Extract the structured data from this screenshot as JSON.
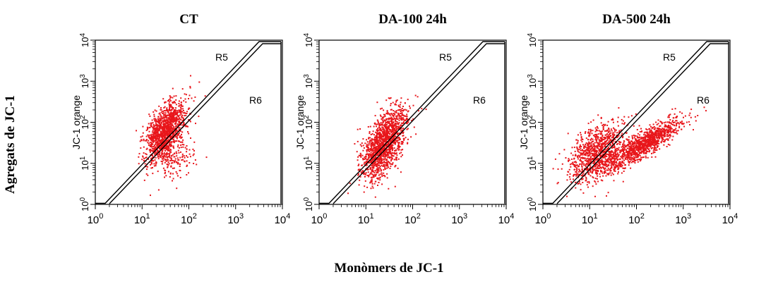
{
  "figure": {
    "ylabel": "Agregats de JC-1",
    "xlabel": "Monòmers de JC-1"
  },
  "chart_data": [
    {
      "type": "scatter",
      "title": "CT",
      "ylabel": "JC-1 orange",
      "xlabel": "",
      "x_scale": "log",
      "y_scale": "log",
      "xlim": [
        1,
        10000
      ],
      "ylim": [
        1,
        10000
      ],
      "x_ticks": [
        "10",
        "10",
        "10",
        "10",
        "10"
      ],
      "x_tick_exponents": [
        "0",
        "1",
        "2",
        "3",
        "4"
      ],
      "y_ticks": [
        "10",
        "10",
        "10",
        "10",
        "10"
      ],
      "y_tick_exponents": [
        "0",
        "1",
        "2",
        "3",
        "4"
      ],
      "regions": [
        "R5",
        "R6"
      ],
      "marker_color": "#e8161b",
      "series": [
        {
          "center": [
            32,
            60
          ],
          "spread": [
            0.22,
            0.36
          ],
          "corr": 0.55,
          "count": 1300
        },
        {
          "center": [
            45,
            12
          ],
          "spread": [
            0.25,
            0.22
          ],
          "corr": 0.3,
          "count": 150
        }
      ]
    },
    {
      "type": "scatter",
      "title": "DA-100 24h",
      "ylabel": "JC-1 orange",
      "xlabel": "",
      "x_scale": "log",
      "y_scale": "log",
      "xlim": [
        1,
        10000
      ],
      "ylim": [
        1,
        10000
      ],
      "x_ticks": [
        "10",
        "10",
        "10",
        "10",
        "10"
      ],
      "x_tick_exponents": [
        "0",
        "1",
        "2",
        "3",
        "4"
      ],
      "y_ticks": [
        "10",
        "10",
        "10",
        "10",
        "10"
      ],
      "y_tick_exponents": [
        "0",
        "1",
        "2",
        "3",
        "4"
      ],
      "regions": [
        "R5",
        "R6"
      ],
      "marker_color": "#e8161b",
      "series": [
        {
          "center": [
            25,
            30
          ],
          "spread": [
            0.23,
            0.42
          ],
          "corr": 0.6,
          "count": 1500
        }
      ]
    },
    {
      "type": "scatter",
      "title": "DA-500 24h",
      "ylabel": "JC-1 orange",
      "xlabel": "",
      "x_scale": "log",
      "y_scale": "log",
      "xlim": [
        1,
        10000
      ],
      "ylim": [
        1,
        10000
      ],
      "x_ticks": [
        "10",
        "10",
        "10",
        "10",
        "10"
      ],
      "x_tick_exponents": [
        "0",
        "1",
        "2",
        "3",
        "4"
      ],
      "y_ticks": [
        "10",
        "10",
        "10",
        "10",
        "10"
      ],
      "y_tick_exponents": [
        "0",
        "1",
        "2",
        "3",
        "4"
      ],
      "regions": [
        "R5",
        "R6"
      ],
      "marker_color": "#e8161b",
      "series": [
        {
          "center": [
            15,
            18
          ],
          "spread": [
            0.3,
            0.36
          ],
          "corr": 0.45,
          "count": 1000
        },
        {
          "center": [
            150,
            30
          ],
          "spread": [
            0.38,
            0.3
          ],
          "corr": 0.85,
          "count": 1100
        }
      ]
    }
  ]
}
